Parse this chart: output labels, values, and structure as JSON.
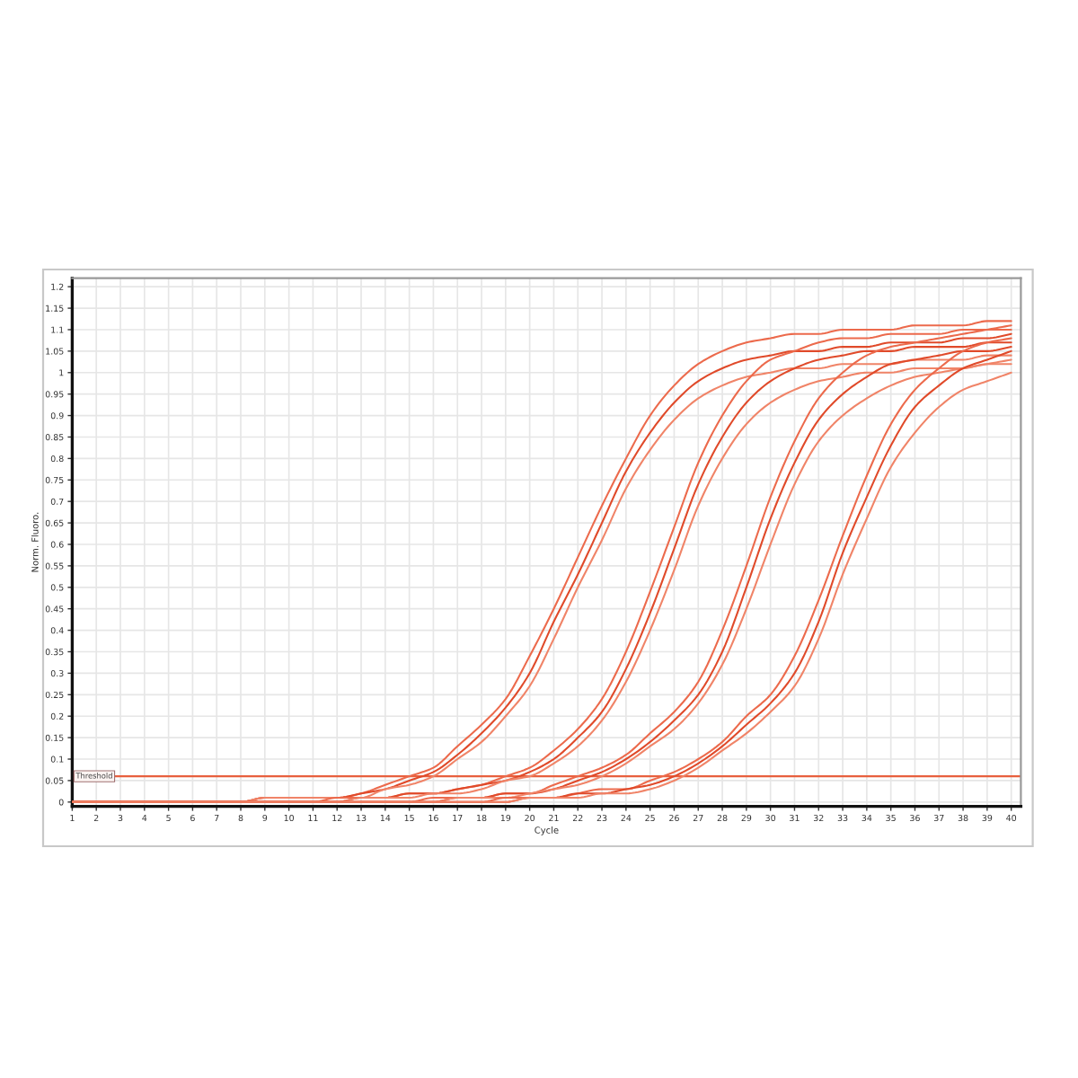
{
  "chart_data": {
    "type": "line",
    "xlabel": "Cycle",
    "ylabel": "Norm. Fluoro.",
    "x": [
      1,
      2,
      3,
      4,
      5,
      6,
      7,
      8,
      9,
      10,
      11,
      12,
      13,
      14,
      15,
      16,
      17,
      18,
      19,
      20,
      21,
      22,
      23,
      24,
      25,
      26,
      27,
      28,
      29,
      30,
      31,
      32,
      33,
      34,
      35,
      36,
      37,
      38,
      39,
      40
    ],
    "series": [
      {
        "color": "#ec6a4c",
        "values": [
          0,
          0,
          0,
          0,
          0,
          0,
          0,
          0,
          0.01,
          0.01,
          0.01,
          0.01,
          0.02,
          0.04,
          0.06,
          0.08,
          0.13,
          0.18,
          0.24,
          0.34,
          0.45,
          0.57,
          0.69,
          0.8,
          0.9,
          0.97,
          1.02,
          1.05,
          1.07,
          1.08,
          1.09,
          1.09,
          1.1,
          1.1,
          1.1,
          1.11,
          1.11,
          1.11,
          1.12,
          1.12
        ]
      },
      {
        "color": "#e04a2a",
        "values": [
          0,
          0,
          0,
          0,
          0,
          0,
          0,
          0,
          0.01,
          0.01,
          0.01,
          0.01,
          0.02,
          0.03,
          0.05,
          0.07,
          0.11,
          0.16,
          0.22,
          0.3,
          0.42,
          0.53,
          0.65,
          0.77,
          0.86,
          0.93,
          0.98,
          1.01,
          1.03,
          1.04,
          1.05,
          1.05,
          1.06,
          1.06,
          1.07,
          1.07,
          1.07,
          1.08,
          1.08,
          1.09
        ]
      },
      {
        "color": "#f08468",
        "values": [
          0,
          0,
          0,
          0,
          0,
          0,
          0,
          0,
          0.01,
          0.01,
          0.01,
          0.01,
          0.01,
          0.03,
          0.04,
          0.06,
          0.1,
          0.14,
          0.2,
          0.27,
          0.38,
          0.5,
          0.61,
          0.73,
          0.82,
          0.89,
          0.94,
          0.97,
          0.99,
          1.0,
          1.01,
          1.01,
          1.02,
          1.02,
          1.02,
          1.03,
          1.03,
          1.03,
          1.04,
          1.04
        ]
      },
      {
        "color": "#ec6a4c",
        "values": [
          0,
          0,
          0,
          0,
          0,
          0,
          0,
          0,
          0,
          0,
          0,
          0.01,
          0.01,
          0.01,
          0.02,
          0.02,
          0.03,
          0.04,
          0.06,
          0.08,
          0.12,
          0.17,
          0.24,
          0.35,
          0.49,
          0.64,
          0.79,
          0.9,
          0.98,
          1.03,
          1.05,
          1.07,
          1.08,
          1.08,
          1.09,
          1.09,
          1.09,
          1.1,
          1.1,
          1.1
        ]
      },
      {
        "color": "#e04a2a",
        "values": [
          0,
          0,
          0,
          0,
          0,
          0,
          0,
          0,
          0,
          0,
          0,
          0,
          0.01,
          0.01,
          0.02,
          0.02,
          0.03,
          0.04,
          0.05,
          0.07,
          0.1,
          0.15,
          0.21,
          0.31,
          0.44,
          0.59,
          0.74,
          0.85,
          0.93,
          0.98,
          1.01,
          1.03,
          1.04,
          1.05,
          1.05,
          1.06,
          1.06,
          1.06,
          1.07,
          1.07
        ]
      },
      {
        "color": "#f08468",
        "values": [
          0,
          0,
          0,
          0,
          0,
          0,
          0,
          0,
          0,
          0,
          0,
          0,
          0.01,
          0.01,
          0.01,
          0.02,
          0.02,
          0.03,
          0.05,
          0.06,
          0.09,
          0.13,
          0.19,
          0.28,
          0.4,
          0.54,
          0.69,
          0.8,
          0.88,
          0.93,
          0.96,
          0.98,
          0.99,
          1.0,
          1.0,
          1.01,
          1.01,
          1.01,
          1.02,
          1.02
        ]
      },
      {
        "color": "#ec6a4c",
        "values": [
          0,
          0,
          0,
          0,
          0,
          0,
          0,
          0,
          0,
          0,
          0,
          0,
          0,
          0,
          0,
          0.01,
          0.01,
          0.01,
          0.02,
          0.02,
          0.04,
          0.06,
          0.08,
          0.11,
          0.16,
          0.21,
          0.28,
          0.4,
          0.55,
          0.71,
          0.84,
          0.94,
          1.0,
          1.04,
          1.06,
          1.07,
          1.08,
          1.09,
          1.1,
          1.11
        ]
      },
      {
        "color": "#e04a2a",
        "values": [
          0,
          0,
          0,
          0,
          0,
          0,
          0,
          0,
          0,
          0,
          0,
          0,
          0,
          0,
          0,
          0,
          0.01,
          0.01,
          0.02,
          0.02,
          0.03,
          0.05,
          0.07,
          0.1,
          0.14,
          0.19,
          0.25,
          0.35,
          0.5,
          0.66,
          0.79,
          0.89,
          0.95,
          0.99,
          1.02,
          1.03,
          1.04,
          1.05,
          1.05,
          1.06
        ]
      },
      {
        "color": "#f08468",
        "values": [
          0,
          0,
          0,
          0,
          0,
          0,
          0,
          0,
          0,
          0,
          0,
          0,
          0,
          0,
          0,
          0,
          0.01,
          0.01,
          0.01,
          0.02,
          0.03,
          0.04,
          0.06,
          0.09,
          0.13,
          0.17,
          0.23,
          0.32,
          0.45,
          0.6,
          0.74,
          0.84,
          0.9,
          0.94,
          0.97,
          0.99,
          1.0,
          1.01,
          1.02,
          1.03
        ]
      },
      {
        "color": "#ec6a4c",
        "values": [
          0,
          0,
          0,
          0,
          0,
          0,
          0,
          0,
          0,
          0,
          0,
          0,
          0,
          0,
          0,
          0,
          0,
          0,
          0.01,
          0.01,
          0.01,
          0.02,
          0.03,
          0.03,
          0.05,
          0.07,
          0.1,
          0.14,
          0.2,
          0.25,
          0.34,
          0.47,
          0.62,
          0.76,
          0.88,
          0.96,
          1.01,
          1.05,
          1.07,
          1.08
        ]
      },
      {
        "color": "#e04a2a",
        "values": [
          0,
          0,
          0,
          0,
          0,
          0,
          0,
          0,
          0,
          0,
          0,
          0,
          0,
          0,
          0,
          0,
          0,
          0,
          0,
          0.01,
          0.01,
          0.02,
          0.02,
          0.03,
          0.04,
          0.06,
          0.09,
          0.13,
          0.18,
          0.23,
          0.3,
          0.42,
          0.58,
          0.71,
          0.83,
          0.92,
          0.97,
          1.01,
          1.03,
          1.05
        ]
      },
      {
        "color": "#f08468",
        "values": [
          0,
          0,
          0,
          0,
          0,
          0,
          0,
          0,
          0,
          0,
          0,
          0,
          0,
          0,
          0,
          0,
          0,
          0,
          0,
          0.01,
          0.01,
          0.01,
          0.02,
          0.02,
          0.03,
          0.05,
          0.08,
          0.12,
          0.16,
          0.21,
          0.27,
          0.38,
          0.53,
          0.66,
          0.78,
          0.86,
          0.92,
          0.96,
          0.98,
          1.0
        ]
      }
    ],
    "xlim": [
      1,
      40.4
    ],
    "ylim": [
      -0.01,
      1.22
    ],
    "xticks": [
      1,
      2,
      3,
      4,
      5,
      6,
      7,
      8,
      9,
      10,
      11,
      12,
      13,
      14,
      15,
      16,
      17,
      18,
      19,
      20,
      21,
      22,
      23,
      24,
      25,
      26,
      27,
      28,
      29,
      30,
      31,
      32,
      33,
      34,
      35,
      36,
      37,
      38,
      39,
      40
    ],
    "yticks": [
      0,
      0.05,
      0.1,
      0.15,
      0.2,
      0.25,
      0.3,
      0.35,
      0.4,
      0.45,
      0.5,
      0.55,
      0.6,
      0.65,
      0.7,
      0.75,
      0.8,
      0.85,
      0.9,
      0.95,
      1,
      1.05,
      1.1,
      1.15,
      1.2
    ],
    "grid": true,
    "ref_lines": [
      {
        "axis": "y",
        "value": 0.06,
        "label": "Threshold",
        "color": "#e8603e"
      }
    ]
  }
}
